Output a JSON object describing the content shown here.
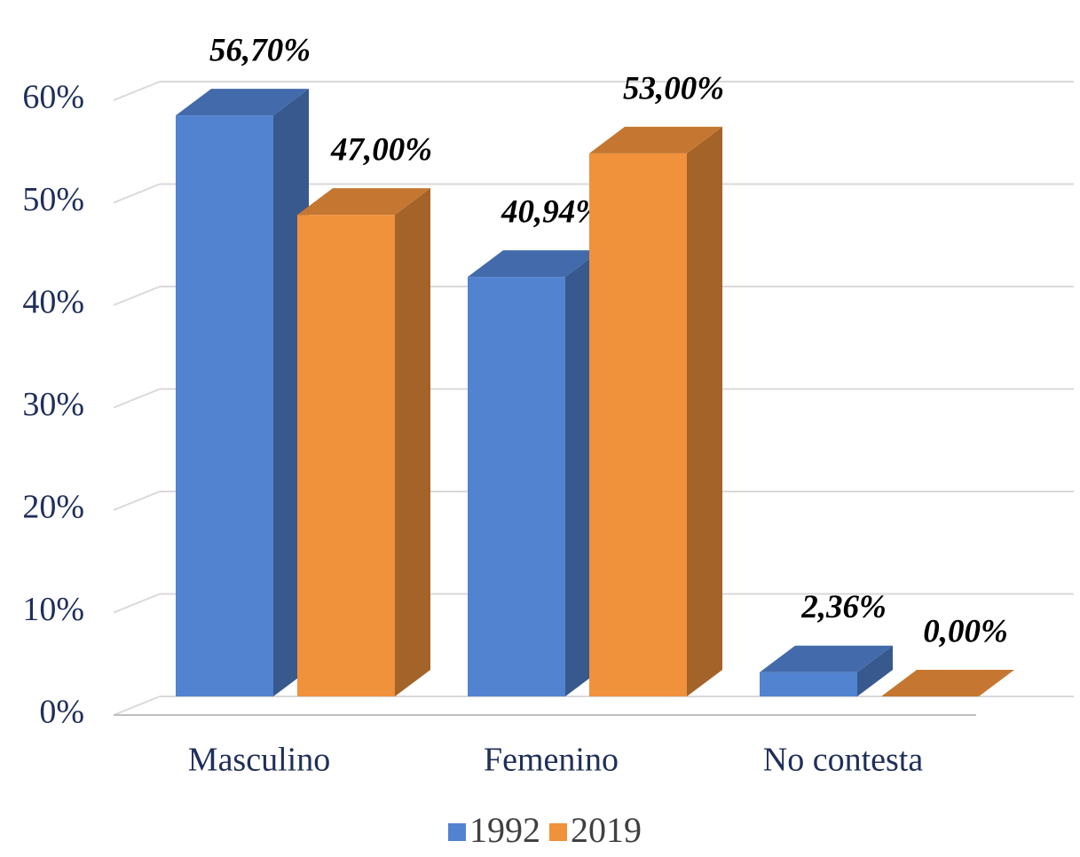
{
  "chart_data": {
    "type": "bar3d",
    "categories": [
      "Masculino",
      "Femenino",
      "No contesta"
    ],
    "series": [
      {
        "name": "1992",
        "color": "#5283d1",
        "values": [
          56.7,
          40.94,
          2.36
        ],
        "value_labels": [
          "56,70%",
          "40,94%",
          "2,36%"
        ]
      },
      {
        "name": "2019",
        "color": "#f0913c",
        "values": [
          47,
          53,
          0
        ],
        "value_labels": [
          "47,00%",
          "53,00%",
          "0,00%"
        ]
      }
    ],
    "ylim": [
      0,
      60
    ],
    "yticks": [
      {
        "value": 0,
        "label": "0%"
      },
      {
        "value": 10,
        "label": "10%"
      },
      {
        "value": 20,
        "label": "20%"
      },
      {
        "value": 30,
        "label": "30%"
      },
      {
        "value": 40,
        "label": "40%"
      },
      {
        "value": 50,
        "label": "50%"
      },
      {
        "value": 60,
        "label": "60%"
      }
    ],
    "grid": true
  }
}
